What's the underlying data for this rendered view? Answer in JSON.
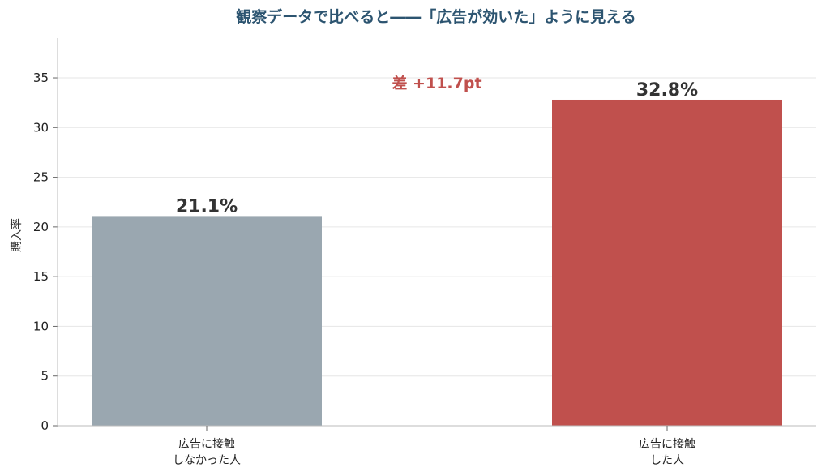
{
  "chart_data": {
    "type": "bar",
    "title": "観察データで比べると――「広告が効いた」ように見える",
    "ylabel": "購入率",
    "xlabel": "",
    "ylim": [
      0,
      39
    ],
    "yticks": [
      0,
      5,
      10,
      15,
      20,
      25,
      30,
      35
    ],
    "grid": "horizontal",
    "categories": [
      [
        "広告に接触",
        "しなかった人"
      ],
      [
        "広告に接触",
        "した人"
      ]
    ],
    "values": [
      21.1,
      32.8
    ],
    "data_labels": [
      "21.1%",
      "32.8%"
    ],
    "bar_colors": [
      "#9aa7b0",
      "#c0504d"
    ],
    "annotation": {
      "text": "差 +11.7pt",
      "color": "#c0504d"
    }
  }
}
